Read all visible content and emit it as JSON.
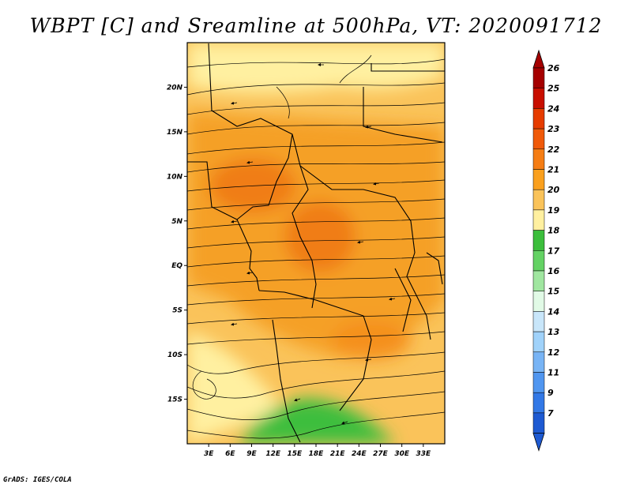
{
  "title": "WBPT [C] and Sreamline at 500hPa, VT: 2020091712",
  "credit": "GrADS: IGES/COLA",
  "map": {
    "lon_range": [
      0,
      36
    ],
    "lat_range": [
      -20,
      25
    ],
    "lat_ticks": [
      {
        "label": "20N",
        "lat": 20
      },
      {
        "label": "15N",
        "lat": 15
      },
      {
        "label": "10N",
        "lat": 10
      },
      {
        "label": "5N",
        "lat": 5
      },
      {
        "label": "EQ",
        "lat": 0
      },
      {
        "label": "5S",
        "lat": -5
      },
      {
        "label": "10S",
        "lat": -10
      },
      {
        "label": "15S",
        "lat": -15
      }
    ],
    "lon_ticks": [
      {
        "label": "3E",
        "lon": 3
      },
      {
        "label": "6E",
        "lon": 6
      },
      {
        "label": "9E",
        "lon": 9
      },
      {
        "label": "12E",
        "lon": 12
      },
      {
        "label": "15E",
        "lon": 15
      },
      {
        "label": "18E",
        "lon": 18
      },
      {
        "label": "21E",
        "lon": 21
      },
      {
        "label": "24E",
        "lon": 24
      },
      {
        "label": "27E",
        "lon": 27
      },
      {
        "label": "30E",
        "lon": 30
      },
      {
        "label": "33E",
        "lon": 33
      }
    ]
  },
  "colorbar": {
    "levels": [
      {
        "label": "26",
        "color": "#a50000"
      },
      {
        "label": "25",
        "color": "#c80f00"
      },
      {
        "label": "24",
        "color": "#e63c00"
      },
      {
        "label": "23",
        "color": "#f05a0a"
      },
      {
        "label": "22",
        "color": "#f57d14"
      },
      {
        "label": "21",
        "color": "#faa01e"
      },
      {
        "label": "20",
        "color": "#fac35a"
      },
      {
        "label": "19",
        "color": "#fff0a0"
      },
      {
        "label": "18",
        "color": "#3cbe3c"
      },
      {
        "label": "17",
        "color": "#64d264"
      },
      {
        "label": "16",
        "color": "#a0e6a0"
      },
      {
        "label": "15",
        "color": "#e1fae6"
      },
      {
        "label": "14",
        "color": "#c8e6fa"
      },
      {
        "label": "13",
        "color": "#a0d2fa"
      },
      {
        "label": "12",
        "color": "#78b4f5"
      },
      {
        "label": "11",
        "color": "#5096f0"
      },
      {
        "label": "9",
        "color": "#3278e6"
      },
      {
        "label": "7",
        "color": "#1e5ad2"
      }
    ],
    "top_arrow_color": "#a50000",
    "bottom_arrow_color": "#1e5ad2"
  }
}
